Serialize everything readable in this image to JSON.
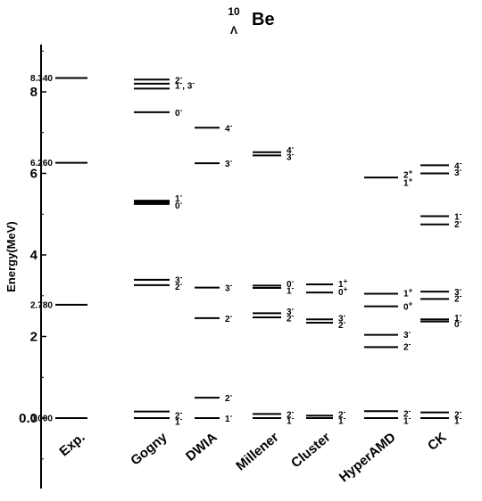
{
  "chart_data": {
    "type": "level-scheme",
    "title": {
      "mass_number": "10",
      "lambda_symbol": "Λ",
      "element": "Be"
    },
    "ylabel": "Energy(MeV)",
    "ylim": [
      -1.7,
      9.2
    ],
    "yticks": [
      {
        "value": 0,
        "label": "0.0"
      },
      {
        "value": 2,
        "label": "2"
      },
      {
        "value": 4,
        "label": "4"
      },
      {
        "value": 6,
        "label": "6"
      },
      {
        "value": 8,
        "label": "8"
      }
    ],
    "categories": [
      "Exp.",
      "Gogny",
      "DWIA",
      "Millener",
      "Cluster",
      "HyperAMD",
      "CK"
    ],
    "columns": [
      {
        "name": "Exp.",
        "levels": [
          {
            "energy": 0.0,
            "value_label": "0.000"
          },
          {
            "energy": 2.78,
            "value_label": "2.780"
          },
          {
            "energy": 6.26,
            "value_label": "6.260"
          },
          {
            "energy": 8.34,
            "value_label": "8.340"
          }
        ]
      },
      {
        "name": "Gogny",
        "levels": [
          {
            "energy": 0.0
          },
          {
            "energy": 0.16
          },
          {
            "energy": 3.26
          },
          {
            "energy": 3.39
          },
          {
            "energy": 5.27,
            "thick": true
          },
          {
            "energy": 5.33
          },
          {
            "energy": 7.5
          },
          {
            "energy": 8.08
          },
          {
            "energy": 8.2
          },
          {
            "energy": 8.3
          }
        ],
        "labels": [
          {
            "energy": 0.08,
            "text": "2",
            "sup": "-"
          },
          {
            "energy": -0.08,
            "text": "1",
            "sup": "-"
          },
          {
            "energy": 3.4,
            "text": "3",
            "sup": "-"
          },
          {
            "energy": 3.24,
            "text": "2",
            "sup": "-"
          },
          {
            "energy": 5.4,
            "text": "1",
            "sup": "-"
          },
          {
            "energy": 5.22,
            "text": "0",
            "sup": "-"
          },
          {
            "energy": 7.5,
            "text": "0",
            "sup": "-"
          },
          {
            "energy": 8.3,
            "text": "2",
            "sup": "-"
          },
          {
            "energy": 8.16,
            "text": "1",
            "sup": "-",
            "extra": ", 3",
            "extra_sup": "-"
          }
        ]
      },
      {
        "name": "DWIA",
        "levels": [
          {
            "energy": 0.0
          },
          {
            "energy": 0.5
          },
          {
            "energy": 2.45
          },
          {
            "energy": 3.2
          },
          {
            "energy": 6.25
          },
          {
            "energy": 7.12
          }
        ],
        "labels": [
          {
            "energy": 0.0,
            "text": "1",
            "sup": "-"
          },
          {
            "energy": 0.5,
            "text": "2",
            "sup": "-"
          },
          {
            "energy": 2.45,
            "text": "2",
            "sup": "-"
          },
          {
            "energy": 3.2,
            "text": "3",
            "sup": "-"
          },
          {
            "energy": 6.25,
            "text": "3",
            "sup": "-"
          },
          {
            "energy": 7.12,
            "text": "4",
            "sup": "-"
          }
        ]
      },
      {
        "name": "Millener",
        "levels": [
          {
            "energy": 0.0
          },
          {
            "energy": 0.1
          },
          {
            "energy": 2.47
          },
          {
            "energy": 2.57
          },
          {
            "energy": 3.19
          },
          {
            "energy": 3.25
          },
          {
            "energy": 6.44
          },
          {
            "energy": 6.52
          }
        ],
        "labels": [
          {
            "energy": 0.1,
            "text": "2",
            "sup": "-"
          },
          {
            "energy": -0.06,
            "text": "1",
            "sup": "-"
          },
          {
            "energy": 2.62,
            "text": "3",
            "sup": "-"
          },
          {
            "energy": 2.46,
            "text": "2",
            "sup": "-"
          },
          {
            "energy": 3.3,
            "text": "0",
            "sup": "-"
          },
          {
            "energy": 3.14,
            "text": "1",
            "sup": "-"
          },
          {
            "energy": 6.58,
            "text": "4",
            "sup": "-"
          },
          {
            "energy": 6.42,
            "text": "3",
            "sup": "-"
          }
        ]
      },
      {
        "name": "Cluster",
        "levels": [
          {
            "energy": 0.0
          },
          {
            "energy": 0.06
          },
          {
            "energy": 2.34
          },
          {
            "energy": 2.42
          },
          {
            "energy": 3.08
          },
          {
            "energy": 3.28
          }
        ],
        "labels": [
          {
            "energy": 0.1,
            "text": "2",
            "sup": "-"
          },
          {
            "energy": -0.06,
            "text": "1",
            "sup": "-"
          },
          {
            "energy": 2.46,
            "text": "3",
            "sup": "-"
          },
          {
            "energy": 2.3,
            "text": "2",
            "sup": "-"
          },
          {
            "energy": 3.3,
            "text": "1",
            "sup": "+"
          },
          {
            "energy": 3.1,
            "text": "0",
            "sup": "+"
          }
        ]
      },
      {
        "name": "HyperAMD",
        "levels": [
          {
            "energy": 0.0
          },
          {
            "energy": 0.17
          },
          {
            "energy": 1.74
          },
          {
            "energy": 2.04
          },
          {
            "energy": 2.74
          },
          {
            "energy": 3.05
          },
          {
            "energy": 5.9
          }
        ],
        "labels": [
          {
            "energy": 0.12,
            "text": "2",
            "sup": "-"
          },
          {
            "energy": -0.05,
            "text": "1",
            "sup": "-"
          },
          {
            "energy": 1.76,
            "text": "2",
            "sup": "-"
          },
          {
            "energy": 2.06,
            "text": "3",
            "sup": "-"
          },
          {
            "energy": 2.74,
            "text": "0",
            "sup": "+"
          },
          {
            "energy": 3.07,
            "text": "1",
            "sup": "+"
          },
          {
            "energy": 5.98,
            "text": "2",
            "sup": "+"
          },
          {
            "energy": 5.78,
            "text": "1",
            "sup": "+"
          }
        ]
      },
      {
        "name": "CK",
        "levels": [
          {
            "energy": 0.0
          },
          {
            "energy": 0.14
          },
          {
            "energy": 2.37
          },
          {
            "energy": 2.42
          },
          {
            "energy": 2.92
          },
          {
            "energy": 3.1
          },
          {
            "energy": 4.75
          },
          {
            "energy": 4.95
          },
          {
            "energy": 6.0
          },
          {
            "energy": 6.2
          }
        ],
        "labels": [
          {
            "energy": 0.1,
            "text": "2",
            "sup": "-"
          },
          {
            "energy": -0.05,
            "text": "1",
            "sup": "-"
          },
          {
            "energy": 2.47,
            "text": "1",
            "sup": "-"
          },
          {
            "energy": 2.32,
            "text": "0",
            "sup": "-"
          },
          {
            "energy": 3.1,
            "text": "3",
            "sup": "-"
          },
          {
            "energy": 2.94,
            "text": "2",
            "sup": "-"
          },
          {
            "energy": 4.95,
            "text": "1",
            "sup": "-"
          },
          {
            "energy": 4.77,
            "text": "2",
            "sup": "-"
          },
          {
            "energy": 6.2,
            "text": "4",
            "sup": "-"
          },
          {
            "energy": 6.03,
            "text": "3",
            "sup": "-"
          }
        ]
      }
    ]
  }
}
